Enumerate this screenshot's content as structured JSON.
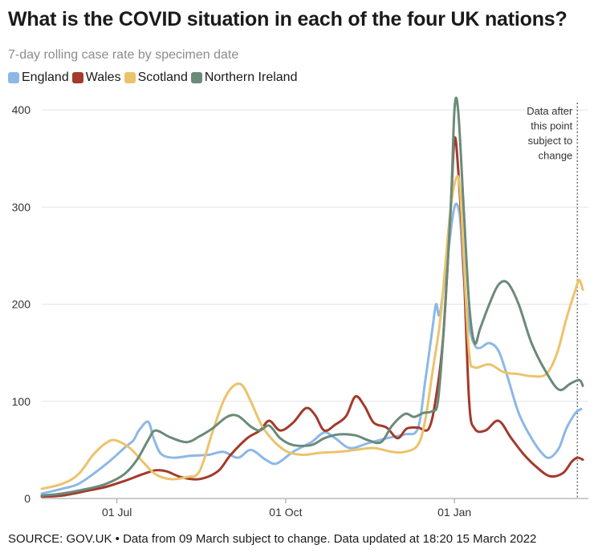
{
  "chart_data": {
    "type": "line",
    "title": "What is the COVID situation in each of the four UK nations?",
    "subtitle": "7-day rolling case rate by specimen date",
    "source": "SOURCE: GOV.UK • Data from 09 March subject to change. Data updated at 18:20 15 March 2022",
    "ylim": [
      0,
      410
    ],
    "yticks": [
      0,
      100,
      200,
      300,
      400
    ],
    "xlim": [
      "2021-05-21",
      "2022-03-15"
    ],
    "xticks": [
      {
        "date": "2021-07-01",
        "label": "01 Jul"
      },
      {
        "date": "2021-10-01",
        "label": "01 Oct"
      },
      {
        "date": "2022-01-01",
        "label": "01 Jan"
      }
    ],
    "grid": true,
    "legend_position": "top-left",
    "annotation": {
      "date": "2022-03-09",
      "lines": [
        "Data after",
        "this point",
        "subject to",
        "change"
      ]
    },
    "series": [
      {
        "name": "England",
        "color": "#8db8e6",
        "points": [
          [
            "2021-05-21",
            5
          ],
          [
            "2021-06-01",
            10
          ],
          [
            "2021-06-10",
            15
          ],
          [
            "2021-06-20",
            28
          ],
          [
            "2021-06-28",
            40
          ],
          [
            "2021-07-05",
            52
          ],
          [
            "2021-07-10",
            60
          ],
          [
            "2021-07-13",
            70
          ],
          [
            "2021-07-18",
            79
          ],
          [
            "2021-07-21",
            62
          ],
          [
            "2021-07-25",
            46
          ],
          [
            "2021-08-01",
            42
          ],
          [
            "2021-08-10",
            44
          ],
          [
            "2021-08-20",
            45
          ],
          [
            "2021-08-28",
            48
          ],
          [
            "2021-09-05",
            42
          ],
          [
            "2021-09-12",
            50
          ],
          [
            "2021-09-20",
            40
          ],
          [
            "2021-09-26",
            36
          ],
          [
            "2021-10-05",
            48
          ],
          [
            "2021-10-15",
            58
          ],
          [
            "2021-10-22",
            68
          ],
          [
            "2021-10-28",
            62
          ],
          [
            "2021-11-05",
            52
          ],
          [
            "2021-11-15",
            57
          ],
          [
            "2021-11-25",
            62
          ],
          [
            "2021-12-05",
            66
          ],
          [
            "2021-12-12",
            72
          ],
          [
            "2021-12-16",
            120
          ],
          [
            "2021-12-20",
            175
          ],
          [
            "2021-12-22",
            200
          ],
          [
            "2021-12-24",
            190
          ],
          [
            "2021-12-28",
            245
          ],
          [
            "2022-01-01",
            300
          ],
          [
            "2022-01-04",
            290
          ],
          [
            "2022-01-06",
            230
          ],
          [
            "2022-01-09",
            178
          ],
          [
            "2022-01-12",
            158
          ],
          [
            "2022-01-15",
            155
          ],
          [
            "2022-01-20",
            160
          ],
          [
            "2022-01-25",
            152
          ],
          [
            "2022-01-30",
            125
          ],
          [
            "2022-02-05",
            88
          ],
          [
            "2022-02-12",
            62
          ],
          [
            "2022-02-18",
            46
          ],
          [
            "2022-02-22",
            42
          ],
          [
            "2022-02-27",
            52
          ],
          [
            "2022-03-03",
            72
          ],
          [
            "2022-03-08",
            88
          ],
          [
            "2022-03-11",
            92
          ]
        ]
      },
      {
        "name": "Wales",
        "color": "#a33a2c",
        "points": [
          [
            "2021-05-21",
            2
          ],
          [
            "2021-06-01",
            3
          ],
          [
            "2021-06-15",
            8
          ],
          [
            "2021-06-25",
            12
          ],
          [
            "2021-07-05",
            18
          ],
          [
            "2021-07-15",
            25
          ],
          [
            "2021-07-22",
            29
          ],
          [
            "2021-07-28",
            28
          ],
          [
            "2021-08-05",
            22
          ],
          [
            "2021-08-15",
            20
          ],
          [
            "2021-08-25",
            28
          ],
          [
            "2021-09-01",
            45
          ],
          [
            "2021-09-10",
            62
          ],
          [
            "2021-09-17",
            70
          ],
          [
            "2021-09-22",
            80
          ],
          [
            "2021-09-28",
            70
          ],
          [
            "2021-10-05",
            78
          ],
          [
            "2021-10-12",
            93
          ],
          [
            "2021-10-17",
            86
          ],
          [
            "2021-10-22",
            70
          ],
          [
            "2021-10-28",
            76
          ],
          [
            "2021-11-03",
            85
          ],
          [
            "2021-11-08",
            105
          ],
          [
            "2021-11-13",
            95
          ],
          [
            "2021-11-18",
            78
          ],
          [
            "2021-11-25",
            73
          ],
          [
            "2021-12-01",
            62
          ],
          [
            "2021-12-06",
            72
          ],
          [
            "2021-12-12",
            73
          ],
          [
            "2021-12-18",
            72
          ],
          [
            "2021-12-22",
            105
          ],
          [
            "2021-12-26",
            170
          ],
          [
            "2021-12-30",
            300
          ],
          [
            "2022-01-01",
            370
          ],
          [
            "2022-01-03",
            340
          ],
          [
            "2022-01-06",
            240
          ],
          [
            "2022-01-09",
            100
          ],
          [
            "2022-01-12",
            72
          ],
          [
            "2022-01-18",
            70
          ],
          [
            "2022-01-25",
            80
          ],
          [
            "2022-02-01",
            62
          ],
          [
            "2022-02-08",
            45
          ],
          [
            "2022-02-15",
            32
          ],
          [
            "2022-02-22",
            23
          ],
          [
            "2022-03-01",
            26
          ],
          [
            "2022-03-06",
            38
          ],
          [
            "2022-03-09",
            42
          ],
          [
            "2022-03-12",
            40
          ]
        ]
      },
      {
        "name": "Scotland",
        "color": "#ecc36b",
        "points": [
          [
            "2021-05-21",
            10
          ],
          [
            "2021-06-01",
            15
          ],
          [
            "2021-06-10",
            25
          ],
          [
            "2021-06-18",
            45
          ],
          [
            "2021-06-25",
            57
          ],
          [
            "2021-06-30",
            60
          ],
          [
            "2021-07-08",
            52
          ],
          [
            "2021-07-15",
            38
          ],
          [
            "2021-07-22",
            25
          ],
          [
            "2021-07-30",
            20
          ],
          [
            "2021-08-08",
            22
          ],
          [
            "2021-08-15",
            28
          ],
          [
            "2021-08-22",
            68
          ],
          [
            "2021-08-28",
            100
          ],
          [
            "2021-09-02",
            115
          ],
          [
            "2021-09-07",
            117
          ],
          [
            "2021-09-12",
            100
          ],
          [
            "2021-09-18",
            75
          ],
          [
            "2021-09-25",
            58
          ],
          [
            "2021-10-02",
            48
          ],
          [
            "2021-10-10",
            45
          ],
          [
            "2021-10-20",
            47
          ],
          [
            "2021-10-30",
            48
          ],
          [
            "2021-11-08",
            50
          ],
          [
            "2021-11-18",
            52
          ],
          [
            "2021-11-28",
            48
          ],
          [
            "2021-12-05",
            48
          ],
          [
            "2021-12-12",
            55
          ],
          [
            "2021-12-16",
            80
          ],
          [
            "2021-12-20",
            130
          ],
          [
            "2021-12-24",
            180
          ],
          [
            "2021-12-27",
            240
          ],
          [
            "2021-12-30",
            300
          ],
          [
            "2022-01-02",
            330
          ],
          [
            "2022-01-04",
            320
          ],
          [
            "2022-01-06",
            250
          ],
          [
            "2022-01-09",
            150
          ],
          [
            "2022-01-12",
            135
          ],
          [
            "2022-01-20",
            138
          ],
          [
            "2022-01-28",
            130
          ],
          [
            "2022-02-05",
            128
          ],
          [
            "2022-02-12",
            126
          ],
          [
            "2022-02-20",
            128
          ],
          [
            "2022-02-26",
            150
          ],
          [
            "2022-03-03",
            185
          ],
          [
            "2022-03-08",
            215
          ],
          [
            "2022-03-10",
            225
          ],
          [
            "2022-03-12",
            215
          ]
        ]
      },
      {
        "name": "Northern Ireland",
        "color": "#6b8a7a",
        "points": [
          [
            "2021-05-21",
            3
          ],
          [
            "2021-06-01",
            5
          ],
          [
            "2021-06-15",
            10
          ],
          [
            "2021-06-25",
            15
          ],
          [
            "2021-07-05",
            25
          ],
          [
            "2021-07-12",
            40
          ],
          [
            "2021-07-18",
            60
          ],
          [
            "2021-07-22",
            70
          ],
          [
            "2021-07-30",
            63
          ],
          [
            "2021-08-08",
            58
          ],
          [
            "2021-08-15",
            64
          ],
          [
            "2021-08-22",
            72
          ],
          [
            "2021-08-30",
            84
          ],
          [
            "2021-09-05",
            85
          ],
          [
            "2021-09-12",
            74
          ],
          [
            "2021-09-17",
            70
          ],
          [
            "2021-09-22",
            75
          ],
          [
            "2021-09-28",
            62
          ],
          [
            "2021-10-05",
            55
          ],
          [
            "2021-10-15",
            55
          ],
          [
            "2021-10-22",
            62
          ],
          [
            "2021-10-30",
            66
          ],
          [
            "2021-11-08",
            65
          ],
          [
            "2021-11-15",
            60
          ],
          [
            "2021-11-22",
            58
          ],
          [
            "2021-11-28",
            75
          ],
          [
            "2021-12-05",
            87
          ],
          [
            "2021-12-10",
            84
          ],
          [
            "2021-12-15",
            88
          ],
          [
            "2021-12-20",
            90
          ],
          [
            "2021-12-23",
            100
          ],
          [
            "2021-12-26",
            170
          ],
          [
            "2021-12-30",
            300
          ],
          [
            "2022-01-01",
            400
          ],
          [
            "2022-01-03",
            400
          ],
          [
            "2022-01-06",
            300
          ],
          [
            "2022-01-09",
            200
          ],
          [
            "2022-01-12",
            160
          ],
          [
            "2022-01-15",
            175
          ],
          [
            "2022-01-20",
            200
          ],
          [
            "2022-01-25",
            220
          ],
          [
            "2022-01-30",
            222
          ],
          [
            "2022-02-05",
            200
          ],
          [
            "2022-02-12",
            160
          ],
          [
            "2022-02-20",
            130
          ],
          [
            "2022-02-27",
            112
          ],
          [
            "2022-03-05",
            118
          ],
          [
            "2022-03-10",
            122
          ],
          [
            "2022-03-12",
            116
          ]
        ]
      }
    ]
  }
}
